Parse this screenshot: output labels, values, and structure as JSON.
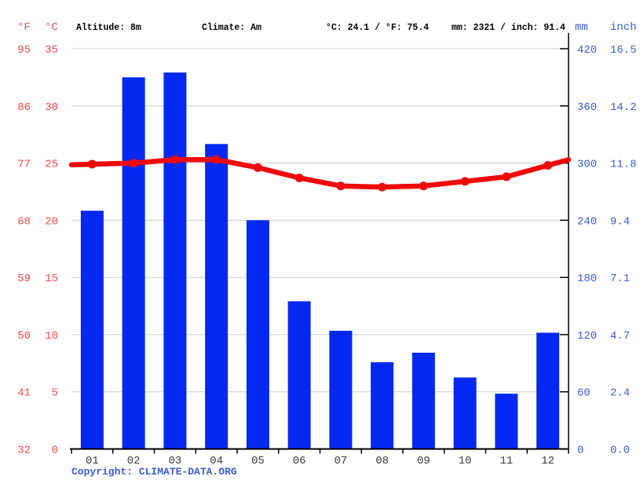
{
  "header": {
    "f_unit": "°F",
    "c_unit": "°C",
    "altitude": "Altitude: 8m",
    "climate": "Climate: Am",
    "temperature_summary": "°C: 24.1 / °F: 75.4",
    "precipitation_summary": "mm: 2321 / inch: 91.4",
    "mm_unit": "mm",
    "inch_unit": "inch"
  },
  "footer": {
    "copyright": "Copyright: CLIMATE-DATA.ORG"
  },
  "colors": {
    "bar_blue": "#0528f0",
    "line_red": "#ee0a0a",
    "red_axis_text": "#f24848",
    "blue_axis_text": "#3c5ad8",
    "grid_gray": "#cccccc",
    "axis_black": "#000000",
    "month_text": "#3c3c3c"
  },
  "chart_data": {
    "type": "bar",
    "categories": [
      "01",
      "02",
      "03",
      "04",
      "05",
      "06",
      "07",
      "08",
      "09",
      "10",
      "11",
      "12"
    ],
    "series": [
      {
        "name": "Precipitation (mm)",
        "type": "bar",
        "axis": "right",
        "unit": "mm",
        "values": [
          250,
          390,
          395,
          320,
          240,
          155,
          124,
          91,
          101,
          75,
          58,
          122
        ]
      },
      {
        "name": "Temperature (°C)",
        "type": "line",
        "axis": "left",
        "unit": "°C",
        "values": [
          24.9,
          25.0,
          25.3,
          25.3,
          24.6,
          23.7,
          23.0,
          22.9,
          23.0,
          23.4,
          23.8,
          24.8
        ]
      }
    ],
    "axes": {
      "fahrenheit_ticks": [
        "95",
        "86",
        "77",
        "68",
        "59",
        "50",
        "41",
        "32"
      ],
      "celsius_ticks": [
        "35",
        "30",
        "25",
        "20",
        "15",
        "10",
        "5",
        "0"
      ],
      "mm_ticks": [
        "420",
        "360",
        "300",
        "240",
        "180",
        "120",
        "60",
        "0"
      ],
      "inch_ticks": [
        "16.5",
        "14.2",
        "11.8",
        "9.4",
        "7.1",
        "4.7",
        "2.4",
        "0.0"
      ],
      "celsius_range": [
        0,
        35
      ],
      "mm_range": [
        0,
        420
      ]
    },
    "grid": true,
    "legend": false
  }
}
